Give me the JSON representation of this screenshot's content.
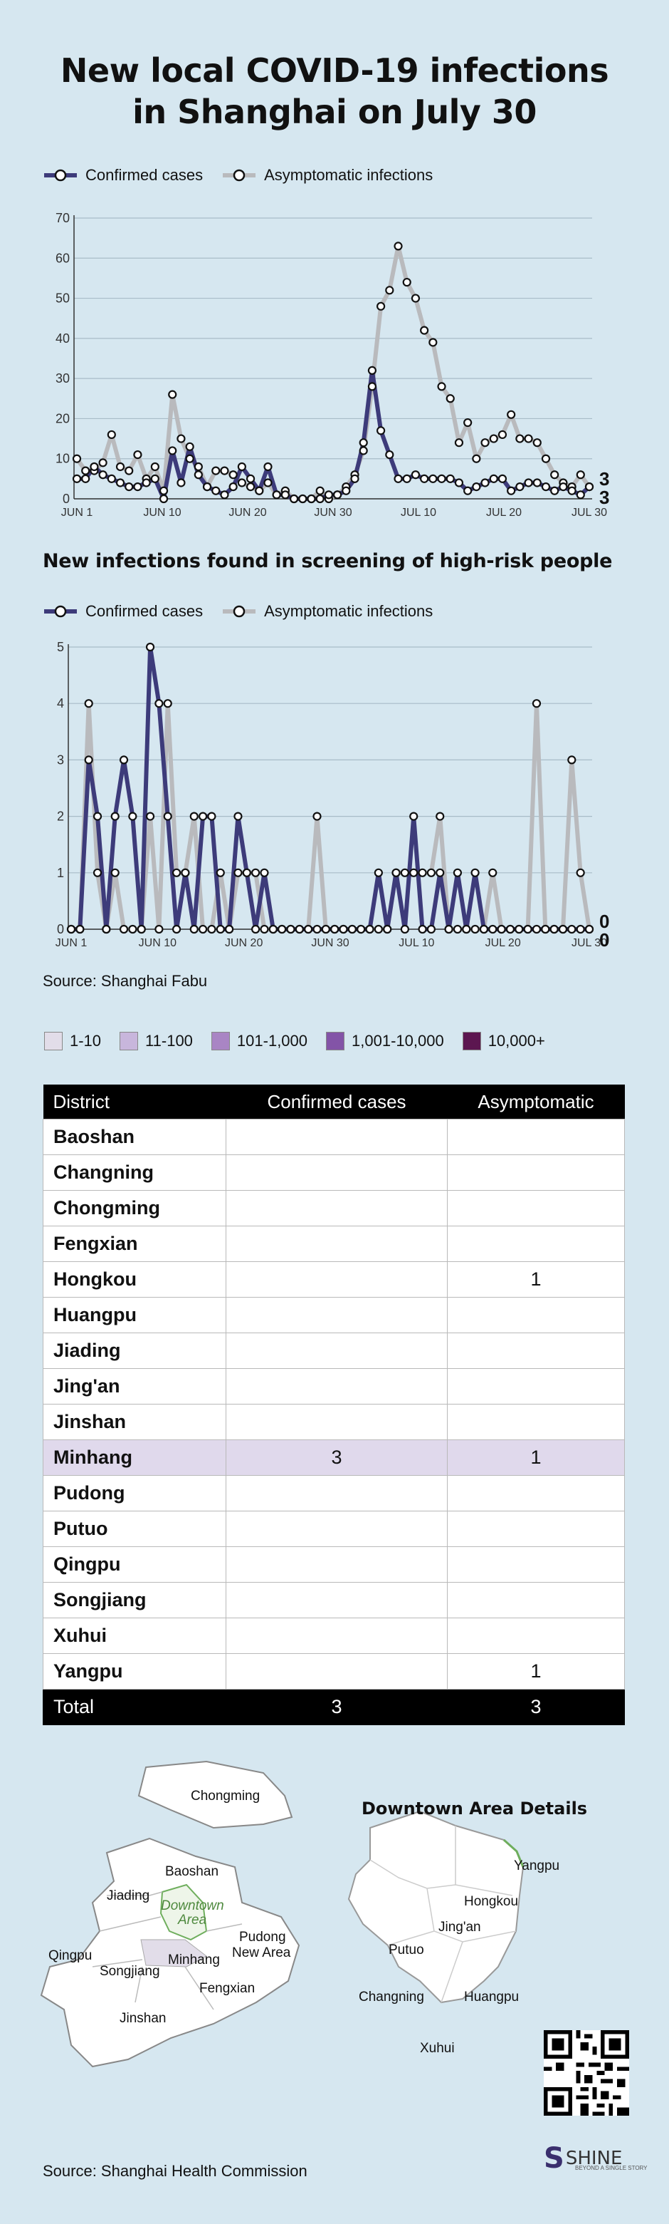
{
  "title_line1": "New local COVID-19 infections",
  "title_line2": "in Shanghai on July 30",
  "legend": {
    "confirmed": "Confirmed cases",
    "asymptomatic": "Asymptomatic infections"
  },
  "colors": {
    "confirmed": "#3d3b7a",
    "asymptomatic": "#b9babd",
    "background": "#d6e7f0"
  },
  "chart_data": [
    {
      "type": "line",
      "title": "",
      "x_ticks": [
        "JUN 1",
        "JUN 10",
        "JUN 20",
        "JUN 30",
        "JUL 10",
        "JUL 20",
        "JUL 30"
      ],
      "x": [
        "JUN 1",
        "Jun 2",
        "Jun 3",
        "Jun 4",
        "Jun 5",
        "Jun 6",
        "Jun 7",
        "Jun 8",
        "Jun 9",
        "JUN 10",
        "Jun 11",
        "Jun 12",
        "Jun 13",
        "Jun 14",
        "Jun 15",
        "Jun 16",
        "Jun 17",
        "Jun 18",
        "Jun 19",
        "JUN 20",
        "Jun 21",
        "Jun 22",
        "Jun 23",
        "Jun 24",
        "Jun 25",
        "Jun 26",
        "Jun 27",
        "Jun 28",
        "Jun 29",
        "JUN 30",
        "Jul 1",
        "Jul 2",
        "Jul 3",
        "Jul 4",
        "Jul 5",
        "Jul 6",
        "Jul 7",
        "Jul 8",
        "Jul 9",
        "JUL 10",
        "Jul 11",
        "Jul 12",
        "Jul 13",
        "Jul 14",
        "Jul 15",
        "Jul 16",
        "Jul 17",
        "Jul 18",
        "Jul 19",
        "JUL 20",
        "Jul 21",
        "Jul 22",
        "Jul 23",
        "Jul 24",
        "Jul 25",
        "Jul 26",
        "Jul 27",
        "Jul 28",
        "Jul 29",
        "JUL 30"
      ],
      "ylim": [
        0,
        70
      ],
      "y_ticks": [
        0,
        10,
        20,
        30,
        40,
        50,
        60,
        70
      ],
      "grid": true,
      "series": [
        {
          "name": "Confirmed cases",
          "values": [
            5,
            5,
            8,
            6,
            5,
            4,
            3,
            3,
            4,
            5,
            0,
            12,
            4,
            13,
            6,
            3,
            2,
            1,
            3,
            8,
            5,
            2,
            8,
            1,
            1,
            0,
            0,
            0,
            0,
            1,
            1,
            2,
            5,
            14,
            32,
            17,
            11,
            5,
            5,
            6,
            5,
            5,
            5,
            5,
            4,
            2,
            3,
            4,
            5,
            5,
            2,
            3,
            4,
            4,
            3,
            2,
            3,
            2,
            1,
            3
          ]
        },
        {
          "name": "Asymptomatic infections",
          "values": [
            10,
            7,
            7,
            9,
            16,
            8,
            7,
            11,
            5,
            8,
            2,
            26,
            15,
            10,
            8,
            3,
            7,
            7,
            6,
            4,
            3,
            2,
            4,
            1,
            2,
            0,
            0,
            0,
            2,
            0,
            1,
            3,
            6,
            12,
            28,
            48,
            52,
            63,
            54,
            50,
            42,
            39,
            28,
            25,
            14,
            19,
            10,
            14,
            15,
            16,
            21,
            15,
            15,
            14,
            10,
            6,
            4,
            3,
            6,
            3
          ]
        }
      ],
      "end_labels": {
        "confirmed": "3",
        "asymptomatic": "3"
      }
    },
    {
      "type": "line",
      "title": "New infections found in screening of high-risk people",
      "x_ticks": [
        "JUN 1",
        "JUN 10",
        "JUN 20",
        "JUN 30",
        "JUL 10",
        "JUL 20",
        "JUL 30"
      ],
      "ylim": [
        0,
        5
      ],
      "y_ticks": [
        0,
        1,
        2,
        3,
        4,
        5
      ],
      "grid": true,
      "series": [
        {
          "name": "Confirmed cases",
          "values": [
            0,
            0,
            3,
            2,
            0,
            2,
            3,
            2,
            0,
            5,
            4,
            2,
            0,
            1,
            0,
            2,
            2,
            0,
            0,
            2,
            1,
            0,
            1,
            0,
            0,
            0,
            0,
            0,
            0,
            0,
            0,
            0,
            0,
            0,
            0,
            1,
            0,
            1,
            0,
            2,
            0,
            0,
            1,
            0,
            1,
            0,
            1,
            0,
            0,
            0,
            0,
            0,
            0,
            0,
            0,
            0,
            0,
            0,
            0,
            0
          ]
        },
        {
          "name": "Asymptomatic infections",
          "values": [
            0,
            0,
            4,
            1,
            0,
            1,
            0,
            0,
            0,
            2,
            0,
            4,
            1,
            1,
            2,
            0,
            0,
            1,
            0,
            1,
            1,
            1,
            0,
            0,
            0,
            0,
            0,
            0,
            2,
            0,
            0,
            0,
            0,
            0,
            0,
            0,
            0,
            1,
            1,
            1,
            1,
            1,
            2,
            0,
            0,
            0,
            0,
            0,
            1,
            0,
            0,
            0,
            0,
            4,
            0,
            0,
            0,
            3,
            1,
            0
          ]
        }
      ],
      "end_labels": {
        "confirmed": "0",
        "asymptomatic": "0"
      }
    }
  ],
  "source1": "Source: Shanghai Fabu",
  "scale": [
    {
      "label": "1-10",
      "color": "#e2dde9"
    },
    {
      "label": "11-100",
      "color": "#c8b6dc"
    },
    {
      "label": "101-1,000",
      "color": "#a985c4"
    },
    {
      "label": "1,001-10,000",
      "color": "#8354a7"
    },
    {
      "label": "10,000+",
      "color": "#5c1650"
    }
  ],
  "table": {
    "headers": [
      "District",
      "Confirmed cases",
      "Asymptomatic"
    ],
    "rows": [
      [
        "Baoshan",
        "",
        ""
      ],
      [
        "Changning",
        "",
        ""
      ],
      [
        "Chongming",
        "",
        ""
      ],
      [
        "Fengxian",
        "",
        ""
      ],
      [
        "Hongkou",
        "",
        "1"
      ],
      [
        "Huangpu",
        "",
        ""
      ],
      [
        "Jiading",
        "",
        ""
      ],
      [
        "Jing'an",
        "",
        ""
      ],
      [
        "Jinshan",
        "",
        ""
      ],
      [
        "Minhang",
        "3",
        "1"
      ],
      [
        "Pudong",
        "",
        ""
      ],
      [
        "Putuo",
        "",
        ""
      ],
      [
        "Qingpu",
        "",
        ""
      ],
      [
        "Songjiang",
        "",
        ""
      ],
      [
        "Xuhui",
        "",
        ""
      ],
      [
        "Yangpu",
        "",
        "1"
      ]
    ],
    "total": [
      "Total",
      "3",
      "3"
    ]
  },
  "map": {
    "left_labels": [
      "Chongming",
      "Baoshan",
      "Jiading",
      "Downtown Area",
      "Pudong New Area",
      "Qingpu",
      "Songjiang",
      "Minhang",
      "Fengxian",
      "Jinshan"
    ],
    "right_title": "Downtown Area Details",
    "right_labels": [
      "Yangpu",
      "Hongkou",
      "Jing'an",
      "Putuo",
      "Changning",
      "Huangpu",
      "Xuhui"
    ]
  },
  "source2": "Source: Shanghai Health Commission",
  "brand": {
    "name": "SHINE",
    "tagline": "BEYOND A SINGLE STORY"
  }
}
